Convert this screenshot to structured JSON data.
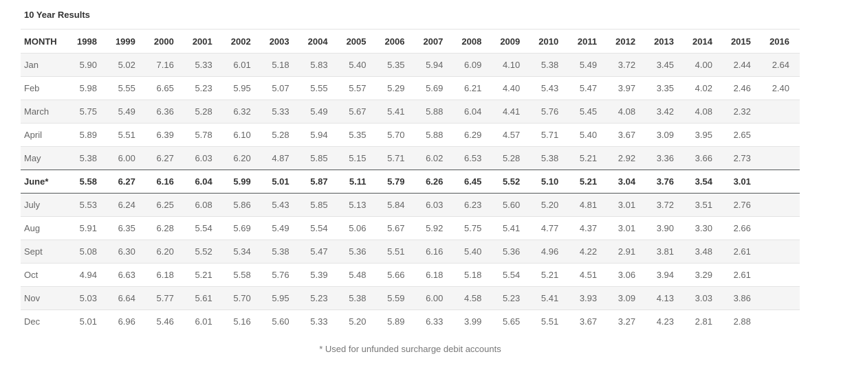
{
  "page_title": "10 Year Results",
  "footnote": "* Used for unfunded surcharge debit accounts",
  "colors": {
    "stripe": "#f5f5f5",
    "row_border": "#e3e3e3",
    "highlight_border": "#55585a",
    "header_text": "#333333",
    "cell_text": "#666666",
    "footnote_text": "#777777"
  },
  "chart_data": {
    "type": "table",
    "title": "10 Year Results",
    "columns": [
      "MONTH",
      "1998",
      "1999",
      "2000",
      "2001",
      "2002",
      "2003",
      "2004",
      "2005",
      "2006",
      "2007",
      "2008",
      "2009",
      "2010",
      "2011",
      "2012",
      "2013",
      "2014",
      "2015",
      "2016"
    ],
    "rows": [
      {
        "month": "Jan",
        "highlight": false,
        "values": [
          "5.90",
          "5.02",
          "7.16",
          "5.33",
          "6.01",
          "5.18",
          "5.83",
          "5.40",
          "5.35",
          "5.94",
          "6.09",
          "4.10",
          "5.38",
          "5.49",
          "3.72",
          "3.45",
          "4.00",
          "2.44",
          "2.64"
        ]
      },
      {
        "month": "Feb",
        "highlight": false,
        "values": [
          "5.98",
          "5.55",
          "6.65",
          "5.23",
          "5.95",
          "5.07",
          "5.55",
          "5.57",
          "5.29",
          "5.69",
          "6.21",
          "4.40",
          "5.43",
          "5.47",
          "3.97",
          "3.35",
          "4.02",
          "2.46",
          "2.40"
        ]
      },
      {
        "month": "March",
        "highlight": false,
        "values": [
          "5.75",
          "5.49",
          "6.36",
          "5.28",
          "6.32",
          "5.33",
          "5.49",
          "5.67",
          "5.41",
          "5.88",
          "6.04",
          "4.41",
          "5.76",
          "5.45",
          "4.08",
          "3.42",
          "4.08",
          "2.32",
          ""
        ]
      },
      {
        "month": "April",
        "highlight": false,
        "values": [
          "5.89",
          "5.51",
          "6.39",
          "5.78",
          "6.10",
          "5.28",
          "5.94",
          "5.35",
          "5.70",
          "5.88",
          "6.29",
          "4.57",
          "5.71",
          "5.40",
          "3.67",
          "3.09",
          "3.95",
          "2.65",
          ""
        ]
      },
      {
        "month": "May",
        "highlight": false,
        "values": [
          "5.38",
          "6.00",
          "6.27",
          "6.03",
          "6.20",
          "4.87",
          "5.85",
          "5.15",
          "5.71",
          "6.02",
          "6.53",
          "5.28",
          "5.38",
          "5.21",
          "2.92",
          "3.36",
          "3.66",
          "2.73",
          ""
        ]
      },
      {
        "month": "June*",
        "highlight": true,
        "values": [
          "5.58",
          "6.27",
          "6.16",
          "6.04",
          "5.99",
          "5.01",
          "5.87",
          "5.11",
          "5.79",
          "6.26",
          "6.45",
          "5.52",
          "5.10",
          "5.21",
          "3.04",
          "3.76",
          "3.54",
          "3.01",
          ""
        ]
      },
      {
        "month": "July",
        "highlight": false,
        "values": [
          "5.53",
          "6.24",
          "6.25",
          "6.08",
          "5.86",
          "5.43",
          "5.85",
          "5.13",
          "5.84",
          "6.03",
          "6.23",
          "5.60",
          "5.20",
          "4.81",
          "3.01",
          "3.72",
          "3.51",
          "2.76",
          ""
        ]
      },
      {
        "month": "Aug",
        "highlight": false,
        "values": [
          "5.91",
          "6.35",
          "6.28",
          "5.54",
          "5.69",
          "5.49",
          "5.54",
          "5.06",
          "5.67",
          "5.92",
          "5.75",
          "5.41",
          "4.77",
          "4.37",
          "3.01",
          "3.90",
          "3.30",
          "2.66",
          ""
        ]
      },
      {
        "month": "Sept",
        "highlight": false,
        "values": [
          "5.08",
          "6.30",
          "6.20",
          "5.52",
          "5.34",
          "5.38",
          "5.47",
          "5.36",
          "5.51",
          "6.16",
          "5.40",
          "5.36",
          "4.96",
          "4.22",
          "2.91",
          "3.81",
          "3.48",
          "2.61",
          ""
        ]
      },
      {
        "month": "Oct",
        "highlight": false,
        "values": [
          "4.94",
          "6.63",
          "6.18",
          "5.21",
          "5.58",
          "5.76",
          "5.39",
          "5.48",
          "5.66",
          "6.18",
          "5.18",
          "5.54",
          "5.21",
          "4.51",
          "3.06",
          "3.94",
          "3.29",
          "2.61",
          ""
        ]
      },
      {
        "month": "Nov",
        "highlight": false,
        "values": [
          "5.03",
          "6.64",
          "5.77",
          "5.61",
          "5.70",
          "5.95",
          "5.23",
          "5.38",
          "5.59",
          "6.00",
          "4.58",
          "5.23",
          "5.41",
          "3.93",
          "3.09",
          "4.13",
          "3.03",
          "3.86",
          ""
        ]
      },
      {
        "month": "Dec",
        "highlight": false,
        "values": [
          "5.01",
          "6.96",
          "5.46",
          "6.01",
          "5.16",
          "5.60",
          "5.33",
          "5.20",
          "5.89",
          "6.33",
          "3.99",
          "5.65",
          "5.51",
          "3.67",
          "3.27",
          "4.23",
          "2.81",
          "2.88",
          ""
        ]
      }
    ],
    "footnote": "* Used for unfunded surcharge debit accounts"
  }
}
